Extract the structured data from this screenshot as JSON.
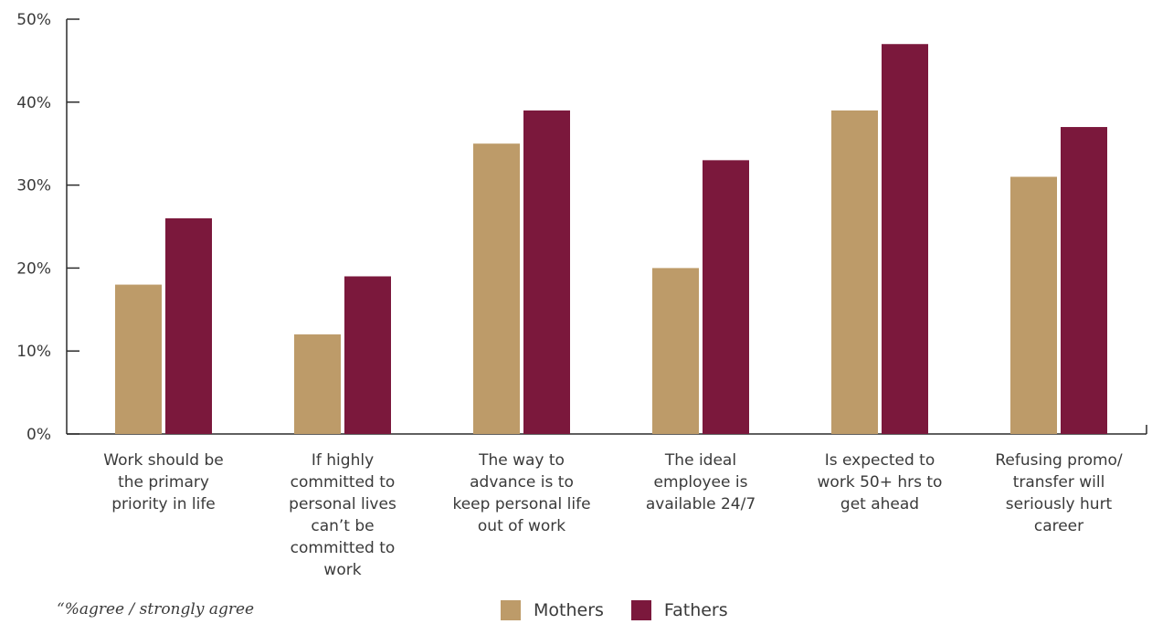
{
  "chart_data": {
    "type": "bar",
    "categories": [
      [
        "Work should be",
        "the primary",
        "priority in life"
      ],
      [
        "If highly",
        "committed to",
        "personal lives",
        "can’t be",
        "committed to",
        "work"
      ],
      [
        "The way to",
        "advance is to",
        "keep personal life",
        "out of work"
      ],
      [
        "The ideal",
        "employee is",
        "available 24/7"
      ],
      [
        "Is expected to",
        "work 50+ hrs to",
        "get ahead"
      ],
      [
        "Refusing promo/",
        "transfer will",
        "seriously hurt",
        "career"
      ]
    ],
    "series": [
      {
        "name": "Mothers",
        "color": "#bd9b69",
        "values": [
          18,
          12,
          35,
          20,
          39,
          31
        ]
      },
      {
        "name": "Fathers",
        "color": "#7b183c",
        "values": [
          26,
          19,
          39,
          33,
          47,
          37
        ]
      }
    ],
    "y_ticks": [
      "0%",
      "10%",
      "20%",
      "30%",
      "40%",
      "50%"
    ],
    "ylim": [
      0,
      50
    ],
    "grid": false,
    "legend_placement": "bottom-center"
  },
  "footnote": "“%agree / strongly agree",
  "legend": {
    "mothers_label": "Mothers",
    "fathers_label": "Fathers"
  }
}
